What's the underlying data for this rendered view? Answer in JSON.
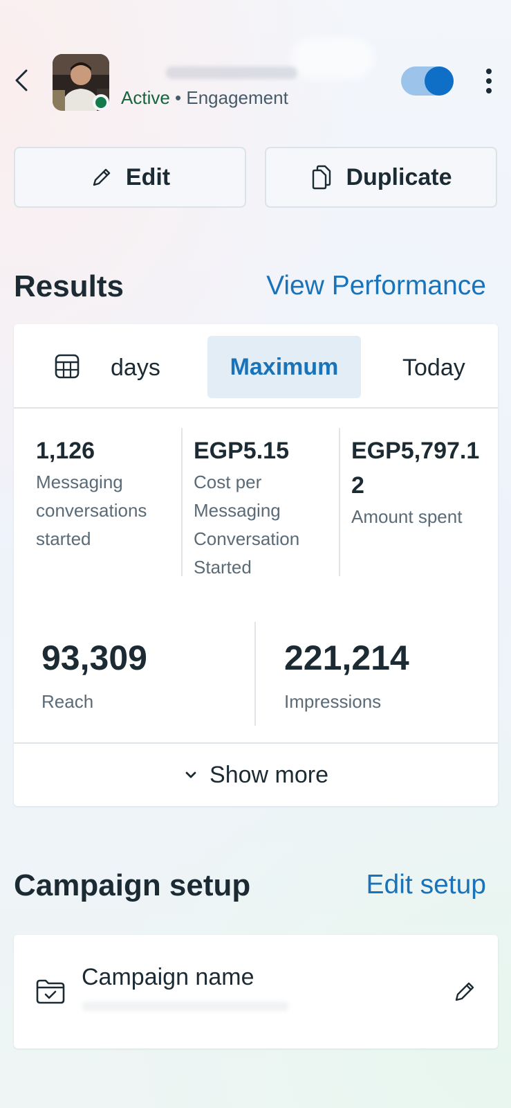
{
  "header": {
    "status_active": "Active",
    "status_separator": " • ",
    "status_objective": "Engagement",
    "toggle_on": true,
    "colors": {
      "toggle_track": "#9cc4ea",
      "toggle_knob": "#0f6fc6",
      "active_dot": "#127a4b"
    }
  },
  "actions": {
    "edit_label": "Edit",
    "duplicate_label": "Duplicate"
  },
  "results": {
    "title": "Results",
    "link": "View Performance",
    "date_range": {
      "options": [
        "days",
        "Maximum",
        "Today"
      ],
      "selected": "Maximum"
    },
    "metrics": [
      {
        "value": "1,126",
        "label": "Messaging conversations started"
      },
      {
        "value": "EGP5.15",
        "label": "Cost per Messaging Conversation Started"
      },
      {
        "value": "EGP5,797.12",
        "label": "Amount spent"
      }
    ],
    "reach": {
      "value": "93,309",
      "label": "Reach"
    },
    "impressions": {
      "value": "221,214",
      "label": "Impressions"
    },
    "show_more": "Show more"
  },
  "setup": {
    "title": "Campaign setup",
    "link": "Edit setup",
    "campaign_name_label": "Campaign name"
  },
  "icons": [
    "back-arrow-icon",
    "avatar",
    "more-vertical-icon",
    "pencil-icon",
    "duplicate-icon",
    "calendar-icon",
    "chevron-down-icon",
    "folder-check-icon",
    "edit-pencil-icon"
  ],
  "accent_color": "#1a73b8"
}
